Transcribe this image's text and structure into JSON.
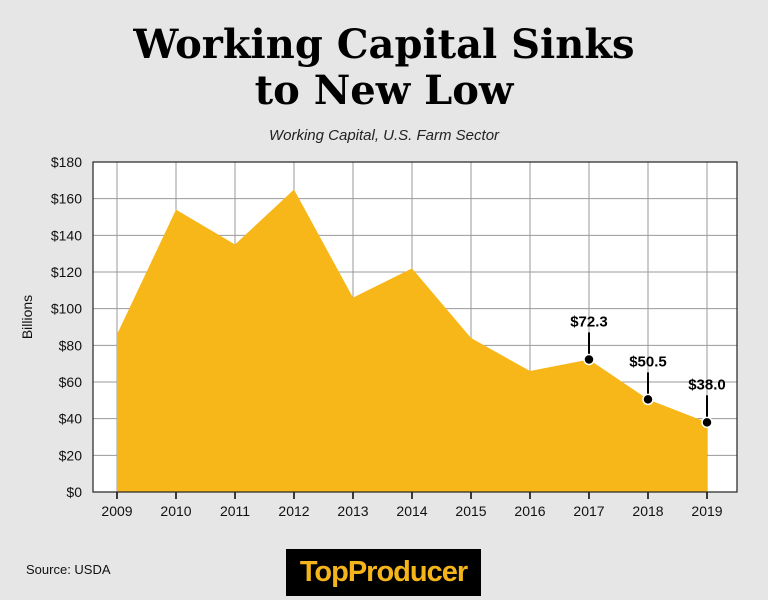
{
  "chart_data": {
    "type": "area",
    "title_lines": [
      "Working Capital Sinks",
      "to New Low"
    ],
    "subtitle": "Working Capital, U.S. Farm Sector",
    "ylabel": "Billions",
    "xlabel": "",
    "x": [
      "2009",
      "2010",
      "2011",
      "2012",
      "2013",
      "2014",
      "2015",
      "2016",
      "2017",
      "2018",
      "2019"
    ],
    "values": [
      86,
      154,
      135,
      165,
      106,
      122,
      84,
      66,
      72.3,
      50.5,
      38.0
    ],
    "ylim": [
      0,
      180
    ],
    "yticks": [
      "$0",
      "$20",
      "$40",
      "$60",
      "$80",
      "$100",
      "$120",
      "$140",
      "$160",
      "$180"
    ],
    "annotations": [
      {
        "x": "2017",
        "value": 72.3,
        "label": "$72.3"
      },
      {
        "x": "2018",
        "value": 50.5,
        "label": "$50.5"
      },
      {
        "x": "2019",
        "value": 38.0,
        "label": "$38.0"
      }
    ],
    "grid": true,
    "fill_color": "#f8b719"
  },
  "footer": {
    "source": "Source: USDA",
    "logo_text": "TopProducer"
  }
}
